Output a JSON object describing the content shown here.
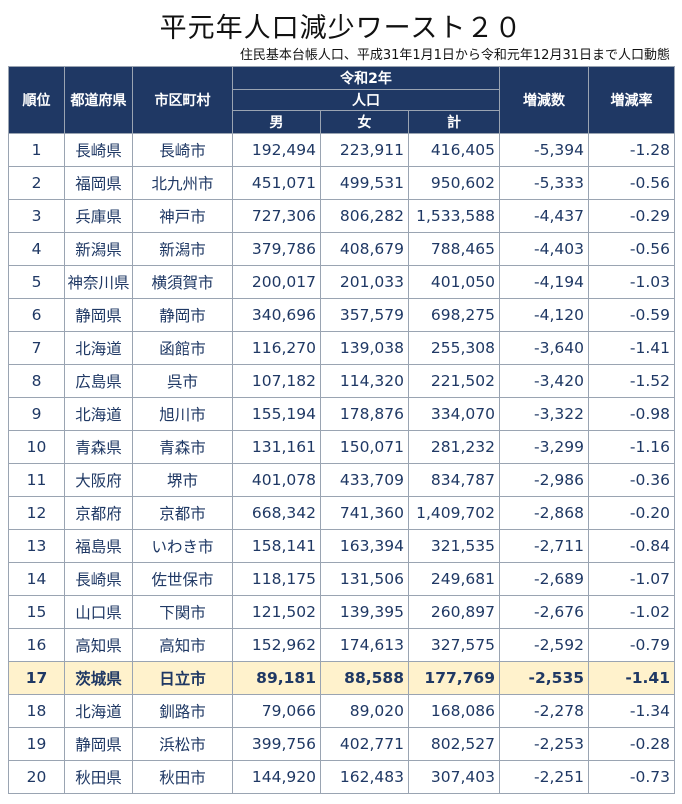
{
  "title": "平元年人口減少ワースト２０",
  "subtitle": "住民基本台帳人口、平成31年1月1日から令和元年12月31日まで人口動態",
  "headers": {
    "rank": "順位",
    "prefecture": "都道府県",
    "city": "市区町村",
    "year": "令和2年",
    "population": "人口",
    "male": "男",
    "female": "女",
    "total": "計",
    "change": "増減数",
    "rate": "増減率"
  },
  "highlight_rank": "17",
  "rows": [
    {
      "rank": "1",
      "prefecture": "長崎県",
      "city": "長崎市",
      "male": "192,494",
      "female": "223,911",
      "total": "416,405",
      "change": "-5,394",
      "rate": "-1.28"
    },
    {
      "rank": "2",
      "prefecture": "福岡県",
      "city": "北九州市",
      "male": "451,071",
      "female": "499,531",
      "total": "950,602",
      "change": "-5,333",
      "rate": "-0.56"
    },
    {
      "rank": "3",
      "prefecture": "兵庫県",
      "city": "神戸市",
      "male": "727,306",
      "female": "806,282",
      "total": "1,533,588",
      "change": "-4,437",
      "rate": "-0.29"
    },
    {
      "rank": "4",
      "prefecture": "新潟県",
      "city": "新潟市",
      "male": "379,786",
      "female": "408,679",
      "total": "788,465",
      "change": "-4,403",
      "rate": "-0.56"
    },
    {
      "rank": "5",
      "prefecture": "神奈川県",
      "city": "横須賀市",
      "male": "200,017",
      "female": "201,033",
      "total": "401,050",
      "change": "-4,194",
      "rate": "-1.03"
    },
    {
      "rank": "6",
      "prefecture": "静岡県",
      "city": "静岡市",
      "male": "340,696",
      "female": "357,579",
      "total": "698,275",
      "change": "-4,120",
      "rate": "-0.59"
    },
    {
      "rank": "7",
      "prefecture": "北海道",
      "city": "函館市",
      "male": "116,270",
      "female": "139,038",
      "total": "255,308",
      "change": "-3,640",
      "rate": "-1.41"
    },
    {
      "rank": "8",
      "prefecture": "広島県",
      "city": "呉市",
      "male": "107,182",
      "female": "114,320",
      "total": "221,502",
      "change": "-3,420",
      "rate": "-1.52"
    },
    {
      "rank": "9",
      "prefecture": "北海道",
      "city": "旭川市",
      "male": "155,194",
      "female": "178,876",
      "total": "334,070",
      "change": "-3,322",
      "rate": "-0.98"
    },
    {
      "rank": "10",
      "prefecture": "青森県",
      "city": "青森市",
      "male": "131,161",
      "female": "150,071",
      "total": "281,232",
      "change": "-3,299",
      "rate": "-1.16"
    },
    {
      "rank": "11",
      "prefecture": "大阪府",
      "city": "堺市",
      "male": "401,078",
      "female": "433,709",
      "total": "834,787",
      "change": "-2,986",
      "rate": "-0.36"
    },
    {
      "rank": "12",
      "prefecture": "京都府",
      "city": "京都市",
      "male": "668,342",
      "female": "741,360",
      "total": "1,409,702",
      "change": "-2,868",
      "rate": "-0.20"
    },
    {
      "rank": "13",
      "prefecture": "福島県",
      "city": "いわき市",
      "male": "158,141",
      "female": "163,394",
      "total": "321,535",
      "change": "-2,711",
      "rate": "-0.84"
    },
    {
      "rank": "14",
      "prefecture": "長崎県",
      "city": "佐世保市",
      "male": "118,175",
      "female": "131,506",
      "total": "249,681",
      "change": "-2,689",
      "rate": "-1.07"
    },
    {
      "rank": "15",
      "prefecture": "山口県",
      "city": "下関市",
      "male": "121,502",
      "female": "139,395",
      "total": "260,897",
      "change": "-2,676",
      "rate": "-1.02"
    },
    {
      "rank": "16",
      "prefecture": "高知県",
      "city": "高知市",
      "male": "152,962",
      "female": "174,613",
      "total": "327,575",
      "change": "-2,592",
      "rate": "-0.79"
    },
    {
      "rank": "17",
      "prefecture": "茨城県",
      "city": "日立市",
      "male": "89,181",
      "female": "88,588",
      "total": "177,769",
      "change": "-2,535",
      "rate": "-1.41"
    },
    {
      "rank": "18",
      "prefecture": "北海道",
      "city": "釧路市",
      "male": "79,066",
      "female": "89,020",
      "total": "168,086",
      "change": "-2,278",
      "rate": "-1.34"
    },
    {
      "rank": "19",
      "prefecture": "静岡県",
      "city": "浜松市",
      "male": "399,756",
      "female": "402,771",
      "total": "802,527",
      "change": "-2,253",
      "rate": "-0.28"
    },
    {
      "rank": "20",
      "prefecture": "秋田県",
      "city": "秋田市",
      "male": "144,920",
      "female": "162,483",
      "total": "307,403",
      "change": "-2,251",
      "rate": "-0.73"
    }
  ],
  "colors": {
    "header_bg": "#1f3864",
    "header_text": "#ffffff",
    "cell_text": "#1f3864",
    "highlight_bg": "#fff2cc"
  }
}
